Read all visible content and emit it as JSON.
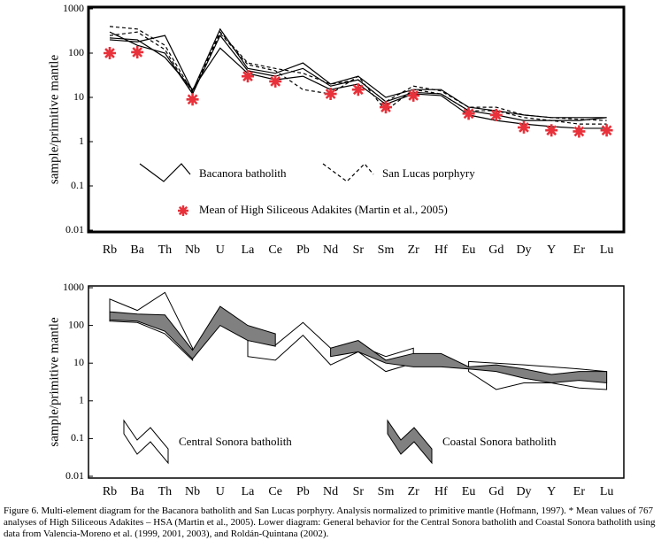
{
  "chart_data": [
    {
      "type": "line",
      "ylabel": "sample/primitive mantle",
      "log_scale": true,
      "categories": [
        "Rb",
        "Ba",
        "Th",
        "Nb",
        "U",
        "La",
        "Ce",
        "Pb",
        "Nd",
        "Sr",
        "Sm",
        "Zr",
        "Hf",
        "Eu",
        "Gd",
        "Dy",
        "Y",
        "Er",
        "Lu"
      ],
      "ylim": [
        0.01,
        1000
      ],
      "yticks": [
        0.01,
        0.1,
        1,
        10,
        100,
        1000
      ],
      "series": [
        {
          "name": "Bacanora batholith",
          "color": "#000000",
          "line_style": "solid",
          "lines": [
            [
              200,
              180,
              250,
              14,
              350,
              45,
              35,
              60,
              20,
              30,
              10,
              15,
              15,
              6,
              5,
              4,
              3.5,
              3.5,
              3.5
            ],
            [
              300,
              150,
              100,
              12,
              250,
              40,
              30,
              45,
              18,
              25,
              8,
              13,
              12,
              5,
              4,
              3,
              3,
              3,
              3.5
            ],
            [
              220,
              200,
              80,
              15,
              130,
              35,
              25,
              30,
              15,
              20,
              7,
              12,
              11,
              4,
              3,
              2.5,
              2.2,
              2,
              2
            ]
          ]
        },
        {
          "name": "San Lucas porphyry",
          "color": "#000000",
          "line_style": "dashed",
          "lines": [
            [
              400,
              350,
              150,
              13,
              300,
              60,
              45,
              35,
              20,
              25,
              8,
              18,
              14,
              6,
              6,
              4,
              3.5,
              3.2,
              3
            ],
            [
              250,
              300,
              120,
              12,
              280,
              55,
              40,
              15,
              12,
              30,
              5,
              15,
              12,
              5,
              5,
              3.5,
              3,
              2.5,
              2.5
            ]
          ]
        },
        {
          "name": "Mean of High Siliceous Adakites (Martin et al., 2005)",
          "color": "#e8313a",
          "marker": "star",
          "values": [
            100,
            105,
            null,
            9,
            null,
            30,
            23,
            null,
            12,
            15,
            6,
            11,
            null,
            4.3,
            4,
            2.1,
            1.8,
            1.7,
            1.8
          ]
        }
      ]
    },
    {
      "type": "band",
      "ylabel": "sample/primitive mantle",
      "log_scale": true,
      "categories": [
        "Rb",
        "Ba",
        "Th",
        "Nb",
        "U",
        "La",
        "Ce",
        "Pb",
        "Nd",
        "Sr",
        "Sm",
        "Zr",
        "Hf",
        "Eu",
        "Gd",
        "Dy",
        "Y",
        "Er",
        "Lu"
      ],
      "ylim": [
        0.01,
        1000
      ],
      "yticks": [
        0.01,
        0.1,
        1,
        10,
        100,
        1000
      ],
      "series": [
        {
          "name": "Central Sonora batholith",
          "color": "#ffffff",
          "upper": [
            500,
            250,
            750,
            25,
            null,
            40,
            30,
            120,
            25,
            30,
            15,
            25,
            null,
            11,
            10,
            9,
            8,
            7,
            6
          ],
          "lower": [
            130,
            120,
            60,
            12,
            null,
            15,
            12,
            55,
            9,
            20,
            6,
            10,
            null,
            6,
            2,
            3,
            3,
            2.2,
            2
          ]
        },
        {
          "name": "Coastal Sonora batholith",
          "color": "#808080",
          "upper": [
            230,
            200,
            190,
            22,
            320,
            100,
            60,
            null,
            25,
            40,
            12,
            18,
            18,
            8,
            9,
            7,
            5,
            6,
            6
          ],
          "lower": [
            140,
            130,
            70,
            13,
            100,
            40,
            28,
            null,
            15,
            20,
            10,
            8,
            8,
            7,
            6,
            4,
            3,
            3.5,
            3
          ]
        }
      ]
    }
  ],
  "caption": "Figure 6. Multi-element diagram for the Bacanora batholith and San Lucas porphyry. Analysis normalized to primitive mantle (Hofmann, 1997). * Mean values of 767 analyses of High Siliceous Adakites – HSA (Martin et al., 2005). Lower diagram: General behavior for the Central Sonora batholith and Coastal Sonora batholith using data from Valencia-Moreno et al. (1999, 2001, 2003), and Roldán-Quintana (2002)."
}
